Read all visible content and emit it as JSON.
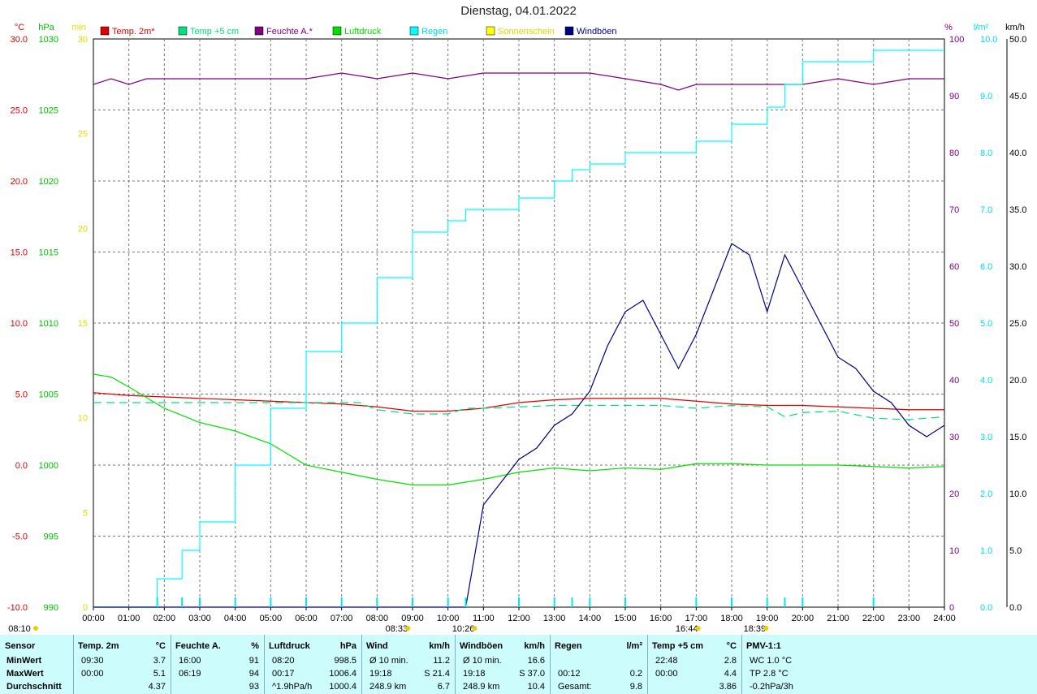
{
  "title": "Dienstag, 04.01.2022",
  "legend": [
    {
      "label": "Temp. 2m*",
      "color": "#e00000"
    },
    {
      "label": "Temp +5 cm",
      "color": "#00e080"
    },
    {
      "label": "Feuchte A.*",
      "color": "#800080"
    },
    {
      "label": "Luftdruck",
      "color": "#00e000"
    },
    {
      "label": "Regen",
      "color": "#00ffff"
    },
    {
      "label": "Sonnenschein",
      "color": "#ffff00"
    },
    {
      "label": "Windböen",
      "color": "#000080"
    }
  ],
  "axes": {
    "left_units": [
      "°C",
      "hPa",
      "min"
    ],
    "right_units": [
      "%",
      "l/m²",
      "km/h"
    ],
    "temp_ticks": [
      "30.0",
      "25.0",
      "20.0",
      "15.0",
      "10.0",
      "5.0",
      "0.0",
      "-5.0",
      "-10.0"
    ],
    "pressure_ticks": [
      "1030",
      "1025",
      "1020",
      "1015",
      "1010",
      "1005",
      "1000",
      "995",
      "990"
    ],
    "sun_ticks": [
      "30",
      "25",
      "20",
      "15",
      "10",
      "5",
      "0"
    ],
    "humidity_ticks": [
      "100",
      "90",
      "80",
      "70",
      "60",
      "50",
      "40",
      "30",
      "20",
      "10",
      "0"
    ],
    "rain_ticks": [
      "10.0",
      "9.0",
      "8.0",
      "7.0",
      "6.0",
      "5.0",
      "4.0",
      "3.0",
      "2.0",
      "1.0",
      "0.0"
    ],
    "wind_ticks": [
      "50.0",
      "45.0",
      "40.0",
      "35.0",
      "30.0",
      "25.0",
      "20.0",
      "15.0",
      "10.0",
      "5.0",
      "0.0"
    ],
    "time_ticks": [
      "00:00",
      "01:00",
      "02:00",
      "03:00",
      "04:00",
      "05:00",
      "06:00",
      "07:00",
      "08:00",
      "09:00",
      "10:00",
      "11:00",
      "12:00",
      "13:00",
      "14:00",
      "15:00",
      "16:00",
      "17:00",
      "18:00",
      "19:00",
      "20:00",
      "21:00",
      "22:00",
      "23:00",
      "24:00"
    ],
    "markers": [
      {
        "label": "08:10",
        "time": 8.167
      },
      {
        "label": "08:33",
        "time": 8.55
      },
      {
        "label": "10:26",
        "time": 10.433
      },
      {
        "label": "16:44",
        "time": 16.733
      },
      {
        "label": "18:39",
        "time": 18.65
      }
    ]
  },
  "chart_data": {
    "type": "line",
    "title": "Dienstag, 04.01.2022",
    "x_range": [
      0,
      24
    ],
    "series": [
      {
        "name": "Temp. 2m*",
        "axis": "°C",
        "ylim": [
          -10,
          30
        ],
        "color": "#e00000",
        "x": [
          0,
          1,
          2,
          3,
          4,
          5,
          6,
          7,
          8,
          9,
          10,
          11,
          12,
          13,
          14,
          15,
          16,
          17,
          18,
          19,
          20,
          21,
          22,
          23,
          24
        ],
        "values": [
          5.1,
          4.9,
          4.8,
          4.7,
          4.6,
          4.5,
          4.4,
          4.3,
          4.1,
          3.8,
          3.8,
          4.0,
          4.4,
          4.6,
          4.7,
          4.7,
          4.7,
          4.5,
          4.3,
          4.2,
          4.2,
          4.1,
          4.0,
          3.9,
          3.9
        ]
      },
      {
        "name": "Temp +5 cm",
        "axis": "°C",
        "ylim": [
          -10,
          30
        ],
        "color": "#00e080",
        "x": [
          0,
          2,
          4,
          7.5,
          8,
          9,
          10,
          10.5,
          11,
          13,
          15,
          16,
          17,
          18,
          19,
          19.5,
          20,
          21,
          22,
          23,
          24
        ],
        "values": [
          4.4,
          4.4,
          4.4,
          4.4,
          3.9,
          3.6,
          3.6,
          4.0,
          4.0,
          4.2,
          4.2,
          4.2,
          4.0,
          4.2,
          4.1,
          3.4,
          3.7,
          3.8,
          3.3,
          3.2,
          3.4
        ]
      },
      {
        "name": "Feuchte A.*",
        "axis": "%",
        "ylim": [
          0,
          100
        ],
        "color": "#800080",
        "x": [
          0,
          0.5,
          1,
          1.5,
          3,
          6,
          7,
          8,
          9,
          10,
          11,
          12,
          13,
          14,
          15,
          16,
          16.5,
          17,
          18,
          19,
          20,
          21,
          22,
          23,
          24
        ],
        "values": [
          92,
          93,
          92,
          93,
          93,
          93,
          94,
          93,
          94,
          93,
          94,
          94,
          94,
          94,
          93,
          92,
          91,
          92,
          92,
          92,
          92,
          93,
          92,
          93,
          93
        ]
      },
      {
        "name": "Luftdruck",
        "axis": "hPa",
        "ylim": [
          990,
          1030
        ],
        "color": "#00e000",
        "x": [
          0,
          0.5,
          1,
          2,
          3,
          4,
          5,
          6,
          7,
          8,
          9,
          10,
          11,
          12,
          13,
          14,
          15,
          16,
          17,
          18,
          19,
          20,
          21,
          22,
          23,
          24
        ],
        "values": [
          1006.4,
          1006.2,
          1005.5,
          1004.0,
          1003.0,
          1002.4,
          1001.5,
          1000.0,
          999.5,
          999.0,
          998.6,
          998.6,
          999.0,
          999.5,
          999.8,
          999.6,
          999.8,
          999.7,
          1000.1,
          1000.1,
          1000.0,
          1000.0,
          1000.0,
          999.9,
          999.8,
          999.9
        ]
      },
      {
        "name": "Regen",
        "axis": "l/m²",
        "ylim": [
          0,
          10
        ],
        "color": "#00ffff",
        "x": [
          0,
          1.2,
          1.8,
          2.5,
          3,
          4,
          5,
          6,
          7,
          8,
          9,
          10,
          10.5,
          11,
          12,
          13,
          13.5,
          14,
          15,
          16,
          17,
          18,
          19,
          19.5,
          20,
          21,
          22,
          23,
          24
        ],
        "values": [
          0.0,
          0.0,
          0.5,
          1.0,
          1.5,
          2.5,
          3.5,
          4.5,
          5.0,
          5.8,
          6.6,
          6.8,
          7.0,
          7.0,
          7.2,
          7.5,
          7.7,
          7.8,
          8.0,
          8.0,
          8.2,
          8.5,
          8.8,
          9.2,
          9.6,
          9.6,
          9.8,
          9.8,
          9.8
        ]
      },
      {
        "name": "Windböen",
        "axis": "km/h",
        "ylim": [
          0,
          50
        ],
        "color": "#000080",
        "x": [
          0,
          1,
          1.5,
          10.5,
          11,
          11.5,
          12,
          12.5,
          13,
          13.5,
          14,
          14.5,
          15,
          15.5,
          16,
          16.5,
          17,
          17.5,
          18,
          18.5,
          19,
          19.5,
          20,
          20.5,
          21,
          21.5,
          22,
          22.5,
          23,
          23.5,
          24
        ],
        "values": [
          0,
          0,
          0,
          0,
          9,
          11,
          13,
          14,
          16,
          17,
          19,
          23,
          26,
          27,
          24,
          21,
          24,
          28,
          32,
          31,
          26,
          31,
          28,
          25,
          22,
          21,
          19,
          18,
          16,
          15,
          16
        ]
      }
    ]
  },
  "stats": {
    "columns": [
      {
        "header": "Sensor",
        "rows": [
          "MinWert",
          "MaxWert",
          "Durchschnitt"
        ]
      },
      {
        "header": "Temp. 2m",
        "unit": "°C",
        "rows": [
          [
            "09:30",
            "3.7"
          ],
          [
            "00:00",
            "5.1"
          ],
          [
            "",
            "4.37"
          ]
        ]
      },
      {
        "header": "Feuchte A.",
        "unit": "%",
        "rows": [
          [
            "16:00",
            "91"
          ],
          [
            "06:19",
            "94"
          ],
          [
            "",
            "93"
          ]
        ]
      },
      {
        "header": "Luftdruck",
        "unit": "hPa",
        "rows": [
          [
            "08:20",
            "998.5"
          ],
          [
            "00:17",
            "1006.4"
          ],
          [
            "^1.9hPa/h",
            "1000.4"
          ]
        ]
      },
      {
        "header": "Wind",
        "unit": "km/h",
        "rows": [
          [
            "Ø 10 min.",
            "11.2"
          ],
          [
            "19:18",
            "S 21.4"
          ],
          [
            "248.9 km",
            "6.7"
          ]
        ]
      },
      {
        "header": "Windböen",
        "unit": "km/h",
        "rows": [
          [
            "Ø 10 min.",
            "16.6"
          ],
          [
            "19:18",
            "S 37.0"
          ],
          [
            "248.9 km",
            "10.4"
          ]
        ]
      },
      {
        "header": "Regen",
        "unit": "l/m²",
        "rows": [
          [
            "",
            ""
          ],
          [
            "00:12",
            "0.2"
          ],
          [
            "Gesamt:",
            "9.8"
          ]
        ]
      },
      {
        "header": "Temp +5 cm",
        "unit": "°C",
        "rows": [
          [
            "22:48",
            "2.8"
          ],
          [
            "00:00",
            "4.4"
          ],
          [
            "",
            "3.86"
          ]
        ]
      },
      {
        "header": "PMV-1:1",
        "unit": "",
        "rows": [
          [
            "WC 1.0 °C",
            ""
          ],
          [
            "TP 2.8 °C",
            ""
          ],
          [
            "-0.2hPa/3h",
            ""
          ]
        ]
      }
    ]
  }
}
